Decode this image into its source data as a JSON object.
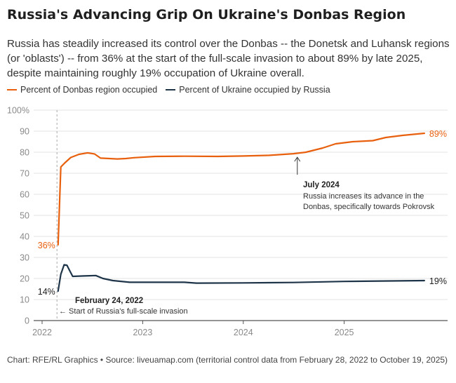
{
  "title": "Russia's Advancing Grip On Ukraine's Donbas Region",
  "subtitle": "Russia has steadily increased its control over the Donbas -- the Donetsk and Luhansk regions (or 'oblasts') -- from 36% at the start of the full-scale invasion to about 89% by late 2025, despite maintaining roughly 19% occupation of Ukraine overall.",
  "source": "Chart: RFE/RL Graphics • Source: liveuamap.com (territorial control data from February 28, 2022 to October 19, 2025)",
  "colors": {
    "donbas": "#e8600e",
    "ukraine": "#1e3448",
    "grid": "#e3e3e3",
    "axis_text": "#8a8a8a"
  },
  "chart_data": {
    "type": "line",
    "x_label_format": "year-month",
    "ylim": [
      0,
      100
    ],
    "yticks": [
      "0",
      "10",
      "20",
      "30",
      "40",
      "50",
      "60",
      "70",
      "80",
      "90",
      "100%"
    ],
    "xticks": [
      "2022",
      "2023",
      "2024",
      "2025"
    ],
    "grid": true,
    "legend_position": "top-left",
    "series": [
      {
        "name": "Percent of Donbas region occupied",
        "color": "#e8600e",
        "start_label": "36%",
        "end_label": "89%",
        "points": [
          [
            "2022-02-28",
            36
          ],
          [
            "2022-03-10",
            73
          ],
          [
            "2022-03-25",
            75
          ],
          [
            "2022-04-15",
            77.5
          ],
          [
            "2022-05-15",
            79
          ],
          [
            "2022-06-15",
            79.7
          ],
          [
            "2022-07-10",
            79.2
          ],
          [
            "2022-08-01",
            77.2
          ],
          [
            "2022-09-01",
            77.0
          ],
          [
            "2022-10-01",
            76.8
          ],
          [
            "2022-11-01",
            77.0
          ],
          [
            "2022-12-01",
            77.4
          ],
          [
            "2023-02-15",
            78.0
          ],
          [
            "2023-06-01",
            78.1
          ],
          [
            "2023-10-01",
            78.0
          ],
          [
            "2024-01-01",
            78.2
          ],
          [
            "2024-04-01",
            78.5
          ],
          [
            "2024-07-01",
            79.3
          ],
          [
            "2024-08-15",
            80.0
          ],
          [
            "2024-10-15",
            82.0
          ],
          [
            "2024-12-01",
            84.0
          ],
          [
            "2025-02-01",
            85.0
          ],
          [
            "2025-04-15",
            85.5
          ],
          [
            "2025-06-01",
            87.0
          ],
          [
            "2025-08-01",
            88.0
          ],
          [
            "2025-10-19",
            89.0
          ]
        ]
      },
      {
        "name": "Percent of Ukraine occupied by Russia",
        "color": "#1e3448",
        "start_label": "14%",
        "end_label": "19%",
        "points": [
          [
            "2022-02-28",
            14
          ],
          [
            "2022-03-10",
            22
          ],
          [
            "2022-03-22",
            26.5
          ],
          [
            "2022-04-01",
            26.3
          ],
          [
            "2022-04-10",
            24
          ],
          [
            "2022-04-22",
            21
          ],
          [
            "2022-06-01",
            21.2
          ],
          [
            "2022-07-15",
            21.4
          ],
          [
            "2022-08-10",
            20.0
          ],
          [
            "2022-09-15",
            19
          ],
          [
            "2022-11-15",
            18.2
          ],
          [
            "2023-01-01",
            18.2
          ],
          [
            "2023-06-01",
            18.2
          ],
          [
            "2023-07-15",
            17.8
          ],
          [
            "2024-01-01",
            17.9
          ],
          [
            "2024-07-01",
            18.1
          ],
          [
            "2025-01-01",
            18.6
          ],
          [
            "2025-10-19",
            19.0
          ]
        ]
      }
    ],
    "annotations": [
      {
        "date": "2022-02-24",
        "title": "February 24, 2022",
        "text": "← Start of Russia's full-scale invasion"
      },
      {
        "date": "2024-07-15",
        "value": 79.3,
        "title": "July 2024",
        "lines": [
          "Russia increases its advance in the",
          "Donbas, specifically towards Pokrovsk"
        ]
      }
    ]
  }
}
